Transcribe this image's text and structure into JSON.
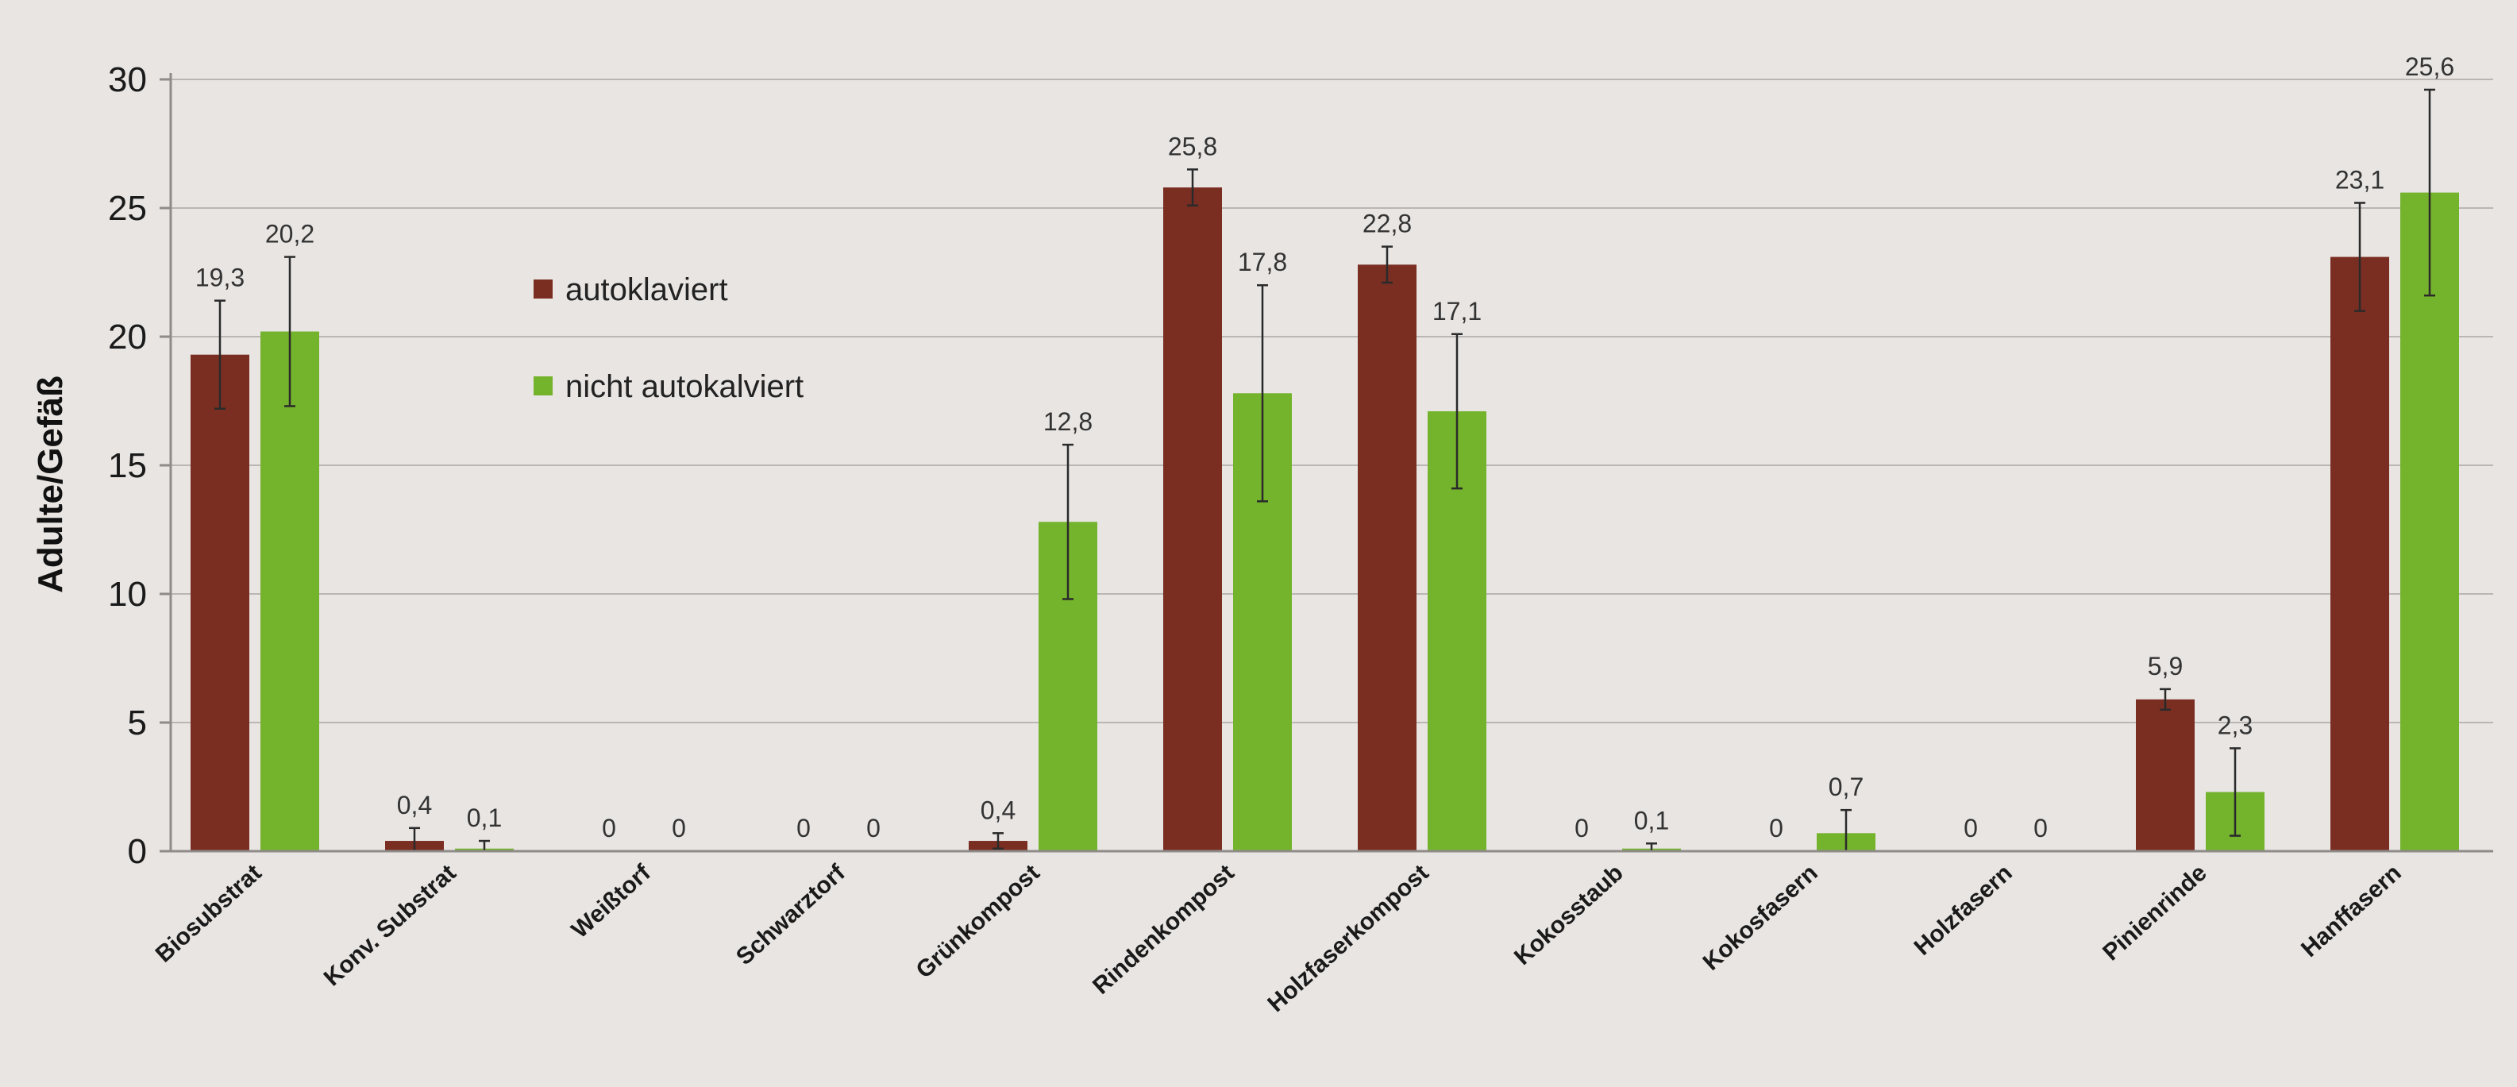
{
  "chart_data": {
    "type": "bar",
    "title": "",
    "xlabel": "",
    "ylabel": "Adulte/Gefäß",
    "ylim": [
      0,
      30
    ],
    "yticks": [
      0,
      5,
      10,
      15,
      20,
      25,
      30
    ],
    "grid": true,
    "legend_position": "upper-left inside plot",
    "categories": [
      "Biosubstrat",
      "Konv. Substrat",
      "Weißtorf",
      "Schwarztorf",
      "Grünkompost",
      "Rindenkompost",
      "Holzfaserkompost",
      "Kokosstaub",
      "Kokosfasern",
      "Holzfasern",
      "Pinienrinde",
      "Hanffasern"
    ],
    "series": [
      {
        "name": "autoklaviert",
        "color": "#7a2e22",
        "values": [
          19.3,
          0.4,
          0,
          0,
          0.4,
          25.8,
          22.8,
          0,
          0,
          0,
          5.9,
          23.1
        ],
        "labels": [
          "19,3",
          "0,4",
          "0",
          "0",
          "0,4",
          "25,8",
          "22,8",
          "0",
          "0",
          "0",
          "5,9",
          "23,1"
        ],
        "error": [
          2.1,
          0.5,
          0,
          0,
          0.3,
          0.7,
          0.7,
          0,
          0,
          0,
          0.4,
          2.1
        ]
      },
      {
        "name": "nicht autokalviert",
        "color": "#74b32c",
        "values": [
          20.2,
          0.1,
          0,
          0,
          12.8,
          17.8,
          17.1,
          0.1,
          0.7,
          0,
          2.3,
          25.6
        ],
        "labels": [
          "20,2",
          "0,1",
          "0",
          "0",
          "12,8",
          "17,8",
          "17,1",
          "0,1",
          "0,7",
          "0",
          "2,3",
          "25,6"
        ],
        "error": [
          2.9,
          0.3,
          0,
          0,
          3.0,
          4.2,
          3.0,
          0.2,
          0.9,
          0,
          1.7,
          4.0
        ]
      }
    ]
  }
}
